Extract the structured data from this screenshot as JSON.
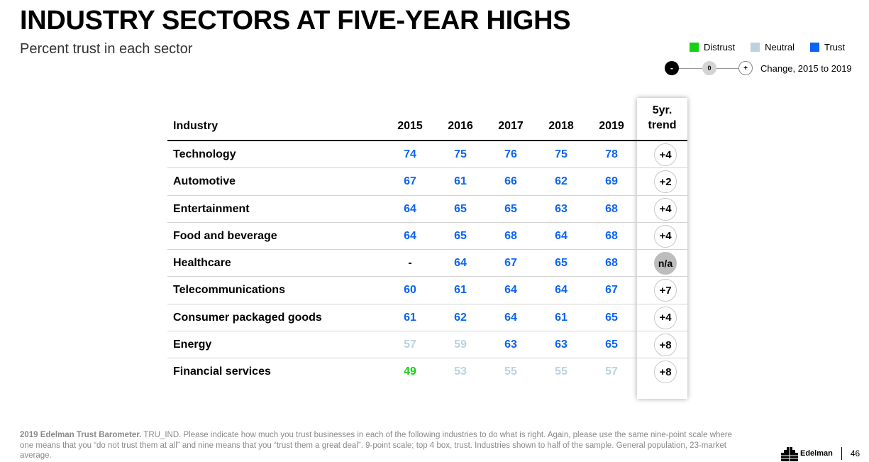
{
  "title": "INDUSTRY SECTORS AT FIVE-YEAR HIGHS",
  "subtitle": "Percent trust in each sector",
  "legend": [
    {
      "label": "Distrust",
      "color": "#13d113"
    },
    {
      "label": "Neutral",
      "color": "#bcd3df"
    },
    {
      "label": "Trust",
      "color": "#0a64f5"
    }
  ],
  "change_legend": {
    "minus": "-",
    "zero": "0",
    "plus": "+",
    "label": "Change, 2015 to 2019"
  },
  "colors": {
    "distrust": "#13d113",
    "neutral": "#bcd3df",
    "trust": "#0a64f5"
  },
  "chart_data": {
    "type": "table",
    "columns": {
      "industry": "Industry",
      "years": [
        "2015",
        "2016",
        "2017",
        "2018",
        "2019"
      ],
      "trend_line1": "5yr.",
      "trend_line2": "trend"
    },
    "rows": [
      {
        "name": "Technology",
        "values": [
          "74",
          "75",
          "76",
          "75",
          "78"
        ],
        "levels": [
          "trust",
          "trust",
          "trust",
          "trust",
          "trust"
        ],
        "trend": "+4"
      },
      {
        "name": "Automotive",
        "values": [
          "67",
          "61",
          "66",
          "62",
          "69"
        ],
        "levels": [
          "trust",
          "trust",
          "trust",
          "trust",
          "trust"
        ],
        "trend": "+2"
      },
      {
        "name": "Entertainment",
        "values": [
          "64",
          "65",
          "65",
          "63",
          "68"
        ],
        "levels": [
          "trust",
          "trust",
          "trust",
          "trust",
          "trust"
        ],
        "trend": "+4"
      },
      {
        "name": "Food and beverage",
        "values": [
          "64",
          "65",
          "68",
          "64",
          "68"
        ],
        "levels": [
          "trust",
          "trust",
          "trust",
          "trust",
          "trust"
        ],
        "trend": "+4"
      },
      {
        "name": "Healthcare",
        "values": [
          "-",
          "64",
          "67",
          "65",
          "68"
        ],
        "levels": [
          "none",
          "trust",
          "trust",
          "trust",
          "trust"
        ],
        "trend": "n/a"
      },
      {
        "name": "Telecommunications",
        "values": [
          "60",
          "61",
          "64",
          "64",
          "67"
        ],
        "levels": [
          "trust",
          "trust",
          "trust",
          "trust",
          "trust"
        ],
        "trend": "+7"
      },
      {
        "name": "Consumer packaged goods",
        "values": [
          "61",
          "62",
          "64",
          "61",
          "65"
        ],
        "levels": [
          "trust",
          "trust",
          "trust",
          "trust",
          "trust"
        ],
        "trend": "+4"
      },
      {
        "name": "Energy",
        "values": [
          "57",
          "59",
          "63",
          "63",
          "65"
        ],
        "levels": [
          "neutral",
          "neutral",
          "trust",
          "trust",
          "trust"
        ],
        "trend": "+8"
      },
      {
        "name": "Financial services",
        "values": [
          "49",
          "53",
          "55",
          "55",
          "57"
        ],
        "levels": [
          "distrust",
          "neutral",
          "neutral",
          "neutral",
          "neutral"
        ],
        "trend": "+8"
      }
    ]
  },
  "footnote": {
    "bold": "2019 Edelman Trust Barometer.",
    "text": " TRU_IND. Please indicate how much you trust businesses in each of the following industries to do what is right. Again, please use the same nine-point scale where one means that you “do not trust them at all” and nine means that you “trust them a great deal”. 9-point scale; top 4 box, trust. Industries shown to half of the sample. General population, 23-market average."
  },
  "brand": {
    "name": "Edelman",
    "page": "46",
    "logo_icon": "edelman-logo-icon"
  }
}
